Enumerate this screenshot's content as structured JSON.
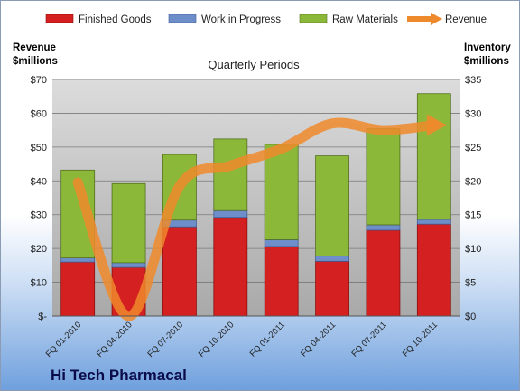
{
  "chart_data": {
    "type": "bar",
    "title": "",
    "subtitle": "Quarterly Periods",
    "company": "Hi Tech Pharmacal",
    "categories": [
      "FQ 01-2010",
      "FQ 04-2010",
      "FQ 07-2010",
      "FQ 10-2010",
      "FQ 01-2011",
      "FQ 04-2011",
      "FQ 07-2011",
      "FQ 10-2011"
    ],
    "y_left": {
      "label_line1": "Revenue",
      "label_line2": "$millions",
      "ylim": [
        0,
        70
      ],
      "ticks": [
        "$-",
        "$10",
        "$20",
        "$30",
        "$40",
        "$50",
        "$60",
        "$70"
      ]
    },
    "y_right": {
      "label_line1": "Inventory",
      "label_line2": "$millions",
      "ylim": [
        0,
        35
      ],
      "ticks": [
        "$0",
        "$5",
        "$10",
        "$15",
        "$20",
        "$25",
        "$30",
        "$35"
      ]
    },
    "series": [
      {
        "name": "Finished Goods",
        "axis": "right",
        "color": "#d42020",
        "values": [
          8.0,
          7.2,
          13.2,
          14.6,
          10.3,
          8.1,
          12.7,
          13.6
        ]
      },
      {
        "name": "Work in Progress",
        "axis": "right",
        "color": "#6d8ec8",
        "values": [
          0.6,
          0.7,
          1.0,
          1.0,
          1.0,
          0.8,
          0.8,
          0.7
        ]
      },
      {
        "name": "Raw Materials",
        "axis": "right",
        "color": "#8cb83a",
        "values": [
          13.0,
          11.7,
          9.7,
          10.6,
          14.1,
          14.8,
          14.2,
          18.6
        ]
      },
      {
        "name": "Revenue",
        "axis": "left",
        "type": "line",
        "color": "#ee8a2c",
        "values": [
          39.5,
          0,
          38.5,
          44.5,
          49.5,
          57.0,
          55.0,
          56.5
        ]
      }
    ],
    "grid": true,
    "legend": "top"
  }
}
